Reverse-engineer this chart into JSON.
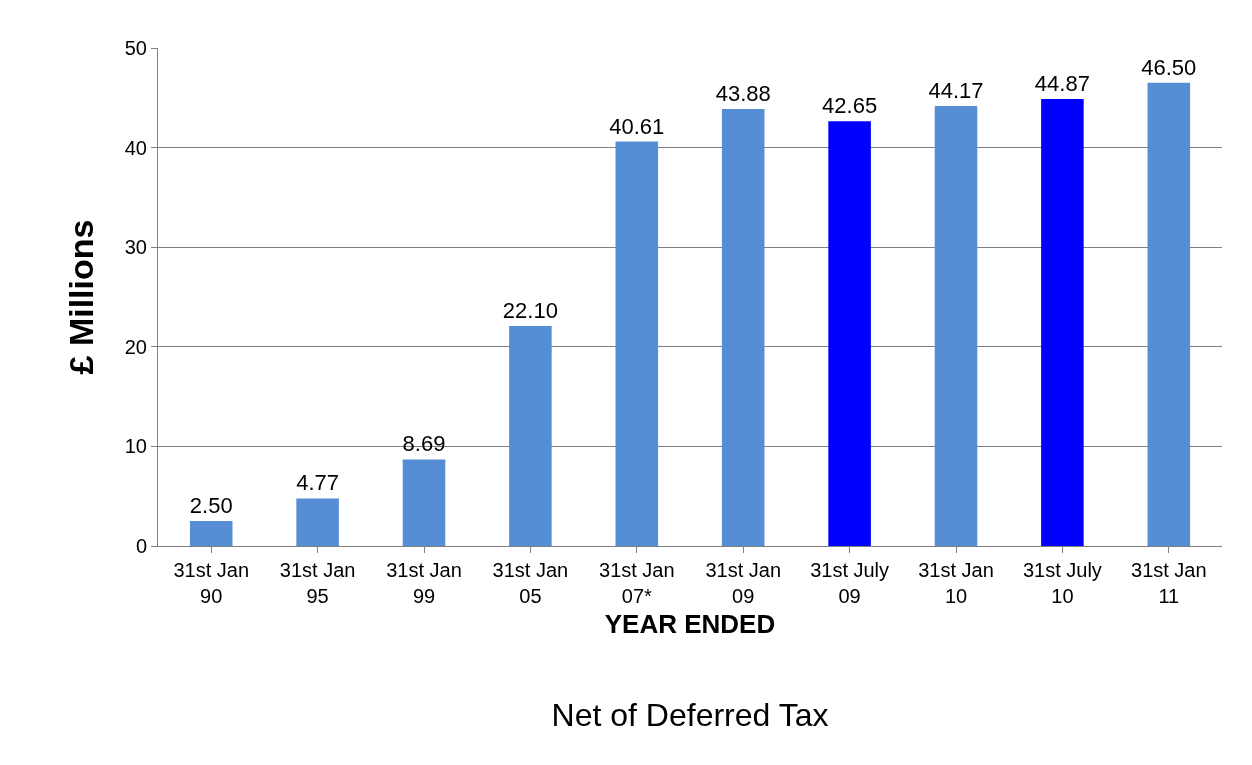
{
  "chart_data": {
    "type": "bar",
    "title": "Net of Deferred Tax",
    "xlabel": "YEAR ENDED",
    "ylabel": "£ Millions",
    "categories": [
      "31st Jan\n90",
      "31st Jan\n95",
      "31st Jan\n99",
      "31st Jan\n05",
      "31st Jan\n07*",
      "31st Jan\n09",
      "31st July\n09",
      "31st Jan\n10",
      "31st July\n10",
      "31st Jan\n11"
    ],
    "values": [
      2.5,
      4.77,
      8.69,
      22.1,
      40.61,
      43.88,
      42.65,
      44.17,
      44.87,
      46.5
    ],
    "value_labels": [
      "2.50",
      "4.77",
      "8.69",
      "22.10",
      "40.61",
      "43.88",
      "42.65",
      "44.17",
      "44.87",
      "46.50"
    ],
    "colors": [
      "#558ed5",
      "#558ed5",
      "#558ed5",
      "#558ed5",
      "#558ed5",
      "#558ed5",
      "#0000ff",
      "#558ed5",
      "#0000ff",
      "#558ed5"
    ],
    "ylim": [
      0,
      50
    ],
    "yticks": [
      0,
      10,
      20,
      30,
      40,
      50
    ],
    "grid": "y"
  }
}
